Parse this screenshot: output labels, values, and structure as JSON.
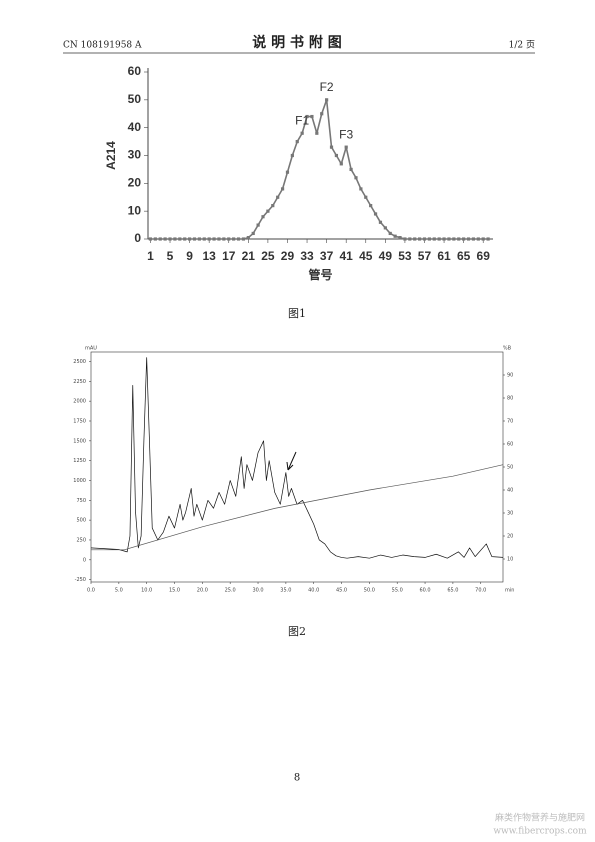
{
  "header": {
    "left": "CN 108191958 A",
    "title": "说 明 书 附 图",
    "right": "1/2 页"
  },
  "captions": [
    "图1",
    "图2"
  ],
  "page_number": "8",
  "watermark": [
    "麻类作物营养与施肥网",
    "www.fibercrops.com"
  ],
  "chart_data": [
    {
      "type": "line",
      "ylabel": "A214",
      "xlabel": "管号",
      "x": [
        1,
        2,
        3,
        4,
        5,
        6,
        7,
        8,
        9,
        10,
        11,
        12,
        13,
        14,
        15,
        16,
        17,
        18,
        19,
        20,
        21,
        22,
        23,
        24,
        25,
        26,
        27,
        28,
        29,
        30,
        31,
        32,
        33,
        34,
        35,
        36,
        37,
        38,
        39,
        40,
        41,
        42,
        43,
        44,
        45,
        46,
        47,
        48,
        49,
        50,
        51,
        52,
        53,
        54,
        55,
        56,
        57,
        58,
        59,
        60,
        61,
        62,
        63,
        64,
        65,
        66,
        67,
        68,
        69,
        70
      ],
      "series": [
        {
          "color": "#777777",
          "markers": true,
          "values": [
            0,
            0,
            0,
            0,
            0,
            0,
            0,
            0,
            0,
            0,
            0,
            0,
            0,
            0,
            0,
            0,
            0,
            0,
            0,
            0,
            0.5,
            2,
            5,
            8,
            10,
            12,
            15,
            18,
            24,
            30,
            35,
            38,
            44,
            44,
            38,
            45,
            50,
            33,
            30,
            27,
            33,
            25,
            22,
            18,
            15,
            12,
            9,
            6,
            4,
            2,
            1,
            0.5,
            0,
            0,
            0,
            0,
            0,
            0,
            0,
            0,
            0,
            0,
            0,
            0,
            0,
            0,
            0,
            0,
            0,
            0
          ]
        }
      ],
      "annotations": [
        {
          "text": "F1",
          "x": 32
        },
        {
          "text": "F2",
          "x": 37
        },
        {
          "text": "F3",
          "x": 41
        }
      ],
      "xlim": [
        0.5,
        71
      ],
      "xticks": [
        1,
        5,
        9,
        13,
        17,
        21,
        25,
        29,
        33,
        37,
        41,
        45,
        49,
        53,
        57,
        61,
        65,
        69
      ],
      "ylim": [
        0,
        60
      ],
      "yticks": [
        0,
        10,
        20,
        30,
        40,
        50,
        60
      ]
    },
    {
      "type": "line",
      "y_unit": "mAU",
      "y2_unit": "%B",
      "x_unit": "min",
      "series": [
        {
          "color": "#111111",
          "x": [
            0,
            5,
            6.5,
            7,
            7.5,
            8,
            8.5,
            9,
            9.5,
            10,
            10.5,
            11,
            12,
            13,
            14,
            15,
            16,
            16.5,
            17,
            18,
            18.5,
            19,
            20,
            21,
            22,
            23,
            24,
            25,
            26,
            27,
            27.5,
            28,
            29,
            30,
            31,
            31.5,
            32,
            33,
            34,
            35,
            35.5,
            36,
            37,
            38,
            39,
            40,
            41,
            42,
            43,
            44,
            45,
            46,
            48,
            50,
            52,
            54,
            56,
            58,
            60,
            62,
            64,
            66,
            67,
            68,
            69,
            71,
            72,
            74
          ],
          "values": [
            150,
            130,
            100,
            300,
            2200,
            600,
            150,
            300,
            1500,
            2550,
            1500,
            400,
            250,
            350,
            550,
            400,
            700,
            500,
            600,
            900,
            550,
            700,
            500,
            750,
            650,
            850,
            700,
            1000,
            800,
            1300,
            900,
            1200,
            1000,
            1350,
            1500,
            1000,
            1250,
            850,
            700,
            1100,
            800,
            900,
            700,
            750,
            600,
            450,
            250,
            200,
            100,
            50,
            30,
            20,
            40,
            20,
            60,
            30,
            60,
            40,
            30,
            70,
            20,
            100,
            30,
            150,
            40,
            200,
            40,
            30
          ]
        },
        {
          "color": "#555555",
          "axis": "y2",
          "x": [
            0,
            6,
            20,
            33,
            50,
            65,
            74
          ],
          "values": [
            14,
            14,
            24,
            32,
            40,
            46,
            51
          ]
        }
      ],
      "xlim": [
        0,
        74
      ],
      "xticks": [
        {
          "value": 0,
          "label": "0.0"
        },
        {
          "value": 5,
          "label": "5.0"
        },
        {
          "value": 10,
          "label": "10.0"
        },
        {
          "value": 15,
          "label": "15.0"
        },
        {
          "value": 20,
          "label": "20.0"
        },
        {
          "value": 25,
          "label": "25.0"
        },
        {
          "value": 30,
          "label": "30.0"
        },
        {
          "value": 35,
          "label": "35.0"
        },
        {
          "value": 40,
          "label": "40.0"
        },
        {
          "value": 45,
          "label": "45.0"
        },
        {
          "value": 50,
          "label": "50.0"
        },
        {
          "value": 55,
          "label": "55.0"
        },
        {
          "value": 60,
          "label": "60.0"
        },
        {
          "value": 65,
          "label": "65.0"
        },
        {
          "value": 70,
          "label": "70.0"
        }
      ],
      "ylim": [
        -280,
        2620
      ],
      "yticks": [
        -250,
        0,
        250,
        500,
        750,
        1000,
        1250,
        1500,
        1750,
        2000,
        2250,
        2500
      ],
      "y2lim": [
        0,
        100
      ],
      "y2ticks": [
        10,
        20,
        30,
        40,
        50,
        60,
        70,
        80,
        90
      ]
    }
  ]
}
